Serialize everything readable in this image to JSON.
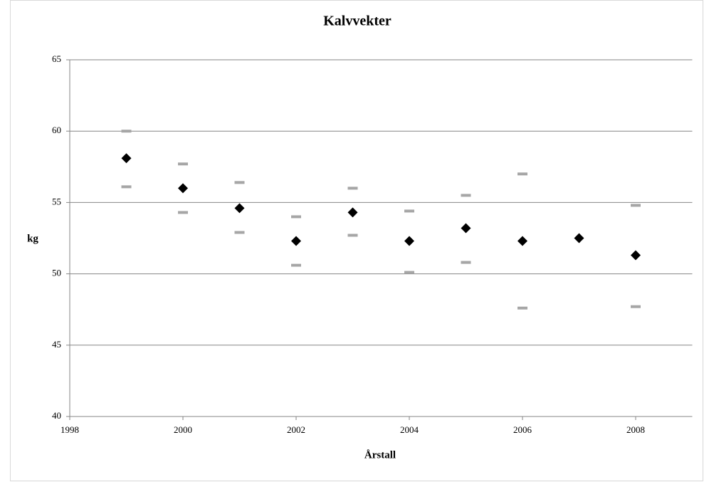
{
  "chart_data": {
    "type": "scatter",
    "title": "Kalvvekter",
    "x_label": "Årstall",
    "y_label": "kg",
    "x": [
      1999,
      2000,
      2001,
      2002,
      2003,
      2004,
      2005,
      2006,
      2007,
      2008
    ],
    "series": [
      {
        "color": "#000000",
        "marker": "diamond",
        "values": [
          58.1,
          56.0,
          54.6,
          52.3,
          54.3,
          52.3,
          53.2,
          52.3,
          52.5,
          51.3
        ]
      },
      {
        "color": "#a6a6a6",
        "marker": "dash",
        "values": [
          60.0,
          57.7,
          56.4,
          54.0,
          56.0,
          54.4,
          55.5,
          57.0,
          null,
          54.8
        ]
      },
      {
        "color": "#a6a6a6",
        "marker": "dash",
        "values": [
          56.1,
          54.3,
          52.9,
          50.6,
          52.7,
          50.1,
          50.8,
          47.6,
          null,
          47.7
        ]
      }
    ],
    "xlim": [
      1998,
      2009
    ],
    "xticks": [
      1998,
      2000,
      2002,
      2004,
      2006,
      2008
    ],
    "ylim": [
      40,
      65
    ],
    "yticks": [
      40,
      45,
      50,
      55,
      60,
      65
    ],
    "grid": true
  }
}
